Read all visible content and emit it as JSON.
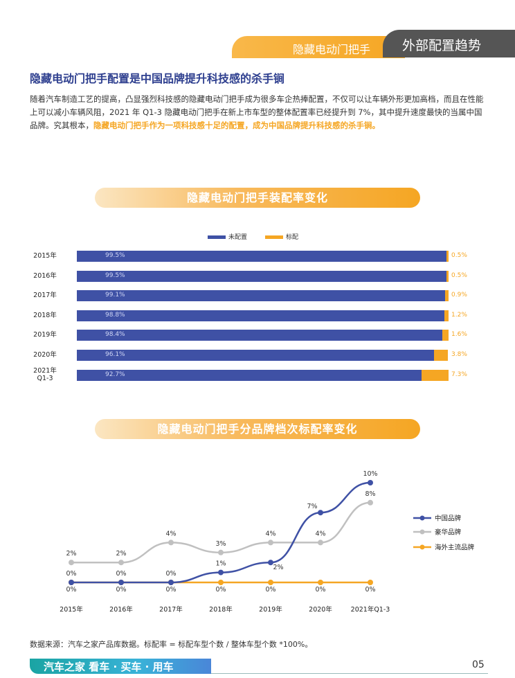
{
  "header": {
    "section_label": "隐藏电动门把手",
    "tag": "外部配置趋势"
  },
  "title": "隐藏电动门把手配置是中国品牌提升科技感的杀手锏",
  "paragraph": {
    "text": "随着汽车制造工艺的提高，凸显强烈科技感的隐藏电动门把手成为很多车企热捧配置，不仅可以让车辆外形更加高档，而且在性能上可以减小车辆风阻，2021 年 Q1-3 隐藏电动门把手在新上市车型的整体配置率已经提升到 7%，其中提升速度最快的当属中国品牌。究其根本，",
    "highlight": "隐藏电动门把手作为一项科技感十足的配置，成为中国品牌提升科技感的杀手锏。"
  },
  "chart_data": [
    {
      "type": "bar",
      "title": "隐藏电动门把手装配率变化",
      "orientation": "horizontal-stacked",
      "categories": [
        "2015年",
        "2016年",
        "2017年",
        "2018年",
        "2019年",
        "2020年",
        "2021年 Q1-3"
      ],
      "series": [
        {
          "name": "未配置",
          "color": "#3f51a5",
          "values": [
            99.5,
            99.5,
            99.1,
            98.8,
            98.4,
            96.1,
            92.7
          ],
          "labels": [
            "99.5%",
            "99.5%",
            "99.1%",
            "98.8%",
            "98.4%",
            "96.1%",
            "92.7%"
          ]
        },
        {
          "name": "标配",
          "color": "#f5a623",
          "values": [
            0.5,
            0.5,
            0.9,
            1.2,
            1.6,
            3.8,
            7.3
          ],
          "labels": [
            "0.5%",
            "0.5%",
            "0.9%",
            "1.2%",
            "1.6%",
            "3.8%",
            "7.3%"
          ]
        }
      ],
      "xlim": [
        0,
        100
      ],
      "legend": "top-center"
    },
    {
      "type": "line",
      "title": "隐藏电动门把手分品牌档次标配率变化",
      "categories": [
        "2015年",
        "2016年",
        "2017年",
        "2018年",
        "2019年",
        "2020年",
        "2021年Q1-3"
      ],
      "series": [
        {
          "name": "中国品牌",
          "color": "#3f51a5",
          "values": [
            0,
            0,
            0,
            1,
            2,
            7,
            10
          ],
          "labels": [
            "0%",
            "0%",
            "0%",
            "1%",
            "2%",
            "7%",
            "10%"
          ]
        },
        {
          "name": "豪华品牌",
          "color": "#c0c0c0",
          "values": [
            2,
            2,
            4,
            3,
            4,
            4,
            8
          ],
          "labels": [
            "2%",
            "2%",
            "4%",
            "3%",
            "4%",
            "4%",
            "8%"
          ]
        },
        {
          "name": "海外主流品牌",
          "color": "#f5a623",
          "values": [
            0,
            0,
            0,
            0,
            0,
            0,
            0
          ],
          "labels": [
            "0%",
            "0%",
            "0%",
            "0%",
            "0%",
            "0%",
            "0%"
          ]
        }
      ],
      "legend": "right"
    }
  ],
  "source": "数据来源：汽车之家产品库数据。标配率 = 标配车型个数 / 整体车型个数 *100%。",
  "footer": {
    "brand": "汽车之家 看车 · 买车 · 用车",
    "page": "05"
  }
}
